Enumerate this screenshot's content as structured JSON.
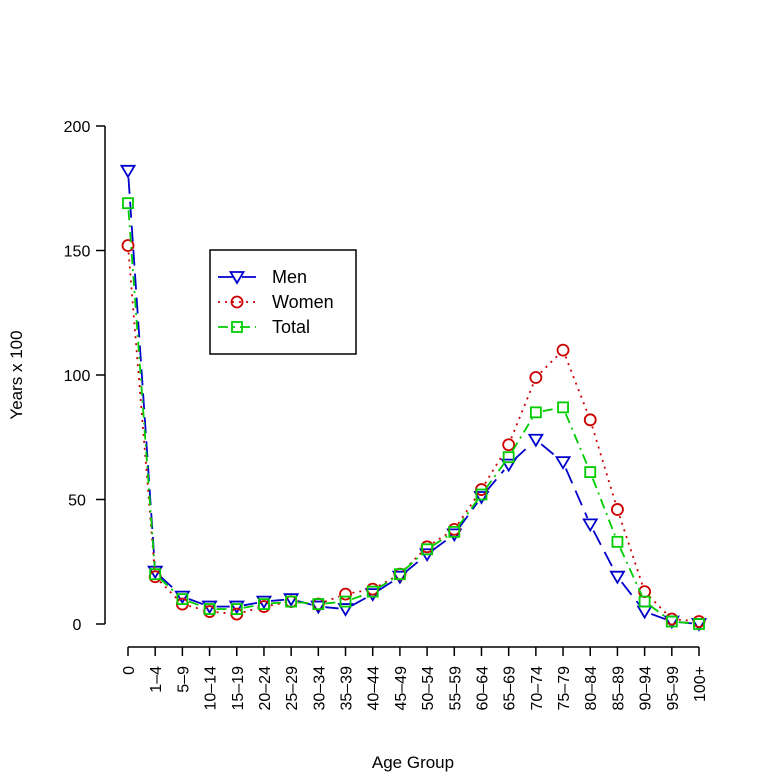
{
  "chart_data": {
    "type": "line",
    "title": "",
    "xlabel": "Age Group",
    "ylabel": "Years x 100",
    "ylim": [
      0,
      200
    ],
    "yticks": [
      0,
      50,
      100,
      150,
      200
    ],
    "categories": [
      "0",
      "1–4",
      "5–9",
      "10–14",
      "15–19",
      "20–24",
      "25–29",
      "30–34",
      "35–39",
      "40–44",
      "45–49",
      "50–54",
      "55–59",
      "60–64",
      "65–69",
      "70–74",
      "75–79",
      "80–84",
      "85–89",
      "90–94",
      "95–99",
      "100+"
    ],
    "legend_position": "upper-left",
    "series": [
      {
        "name": "Men",
        "color": "#0000cc",
        "marker": "triangle-down",
        "dash": "long-dash",
        "values": [
          182,
          21,
          11,
          7,
          7,
          9,
          10,
          7,
          6,
          12,
          19,
          28,
          36,
          51,
          64,
          74,
          65,
          40,
          19,
          5,
          1,
          0
        ]
      },
      {
        "name": "Women",
        "color": "#cc0000",
        "marker": "circle",
        "dash": "dotted",
        "values": [
          152,
          19,
          8,
          5,
          4,
          7,
          9,
          8,
          12,
          14,
          20,
          31,
          38,
          54,
          72,
          99,
          110,
          82,
          46,
          13,
          2,
          1
        ]
      },
      {
        "name": "Total",
        "color": "#00cc00",
        "marker": "square",
        "dash": "dash-dot",
        "values": [
          169,
          20,
          10,
          6,
          6,
          8,
          9,
          8,
          9,
          13,
          20,
          30,
          37,
          52,
          67,
          85,
          87,
          61,
          33,
          9,
          1,
          0
        ]
      }
    ]
  }
}
